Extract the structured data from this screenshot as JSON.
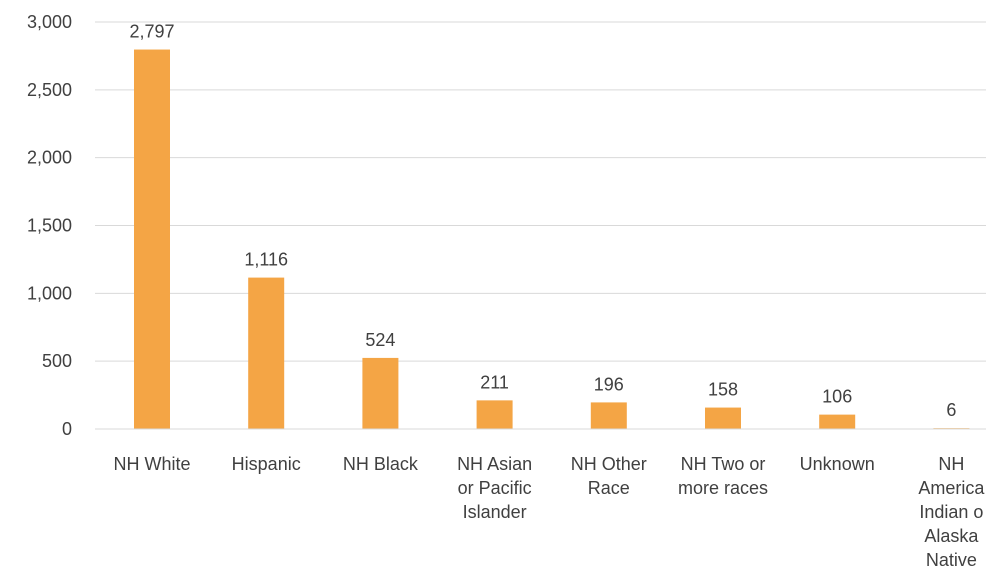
{
  "chart_data": {
    "type": "bar",
    "title": "",
    "xlabel": "",
    "ylabel": "",
    "categories": [
      "NH White",
      "Hispanic",
      "NH Black",
      "NH Asian or Pacific Islander",
      "NH Other Race",
      "NH Two or more races",
      "Unknown",
      "NH America Indian o Alaska Native"
    ],
    "category_lines": [
      [
        "NH White"
      ],
      [
        "Hispanic"
      ],
      [
        "NH Black"
      ],
      [
        "NH Asian",
        "or Pacific",
        "Islander"
      ],
      [
        "NH Other",
        "Race"
      ],
      [
        "NH Two or",
        "more races"
      ],
      [
        "Unknown"
      ],
      [
        "NH",
        "America",
        "Indian o",
        "Alaska",
        "Native"
      ]
    ],
    "values": [
      2797,
      1116,
      524,
      211,
      196,
      158,
      106,
      6
    ],
    "data_labels": [
      "2,797",
      "1,116",
      "524",
      "211",
      "196",
      "158",
      "106",
      "6"
    ],
    "ylim": [
      0,
      3000
    ],
    "yticks": [
      0,
      500,
      1000,
      1500,
      2000,
      2500,
      3000
    ],
    "ytick_labels": [
      "0",
      "500",
      "1,000",
      "1,500",
      "2,000",
      "2,500",
      "3,000"
    ],
    "grid": true,
    "legend": "none",
    "colors": {
      "bar": "#F4A545",
      "grid": "#d9d9d9",
      "text": "#404040"
    }
  }
}
